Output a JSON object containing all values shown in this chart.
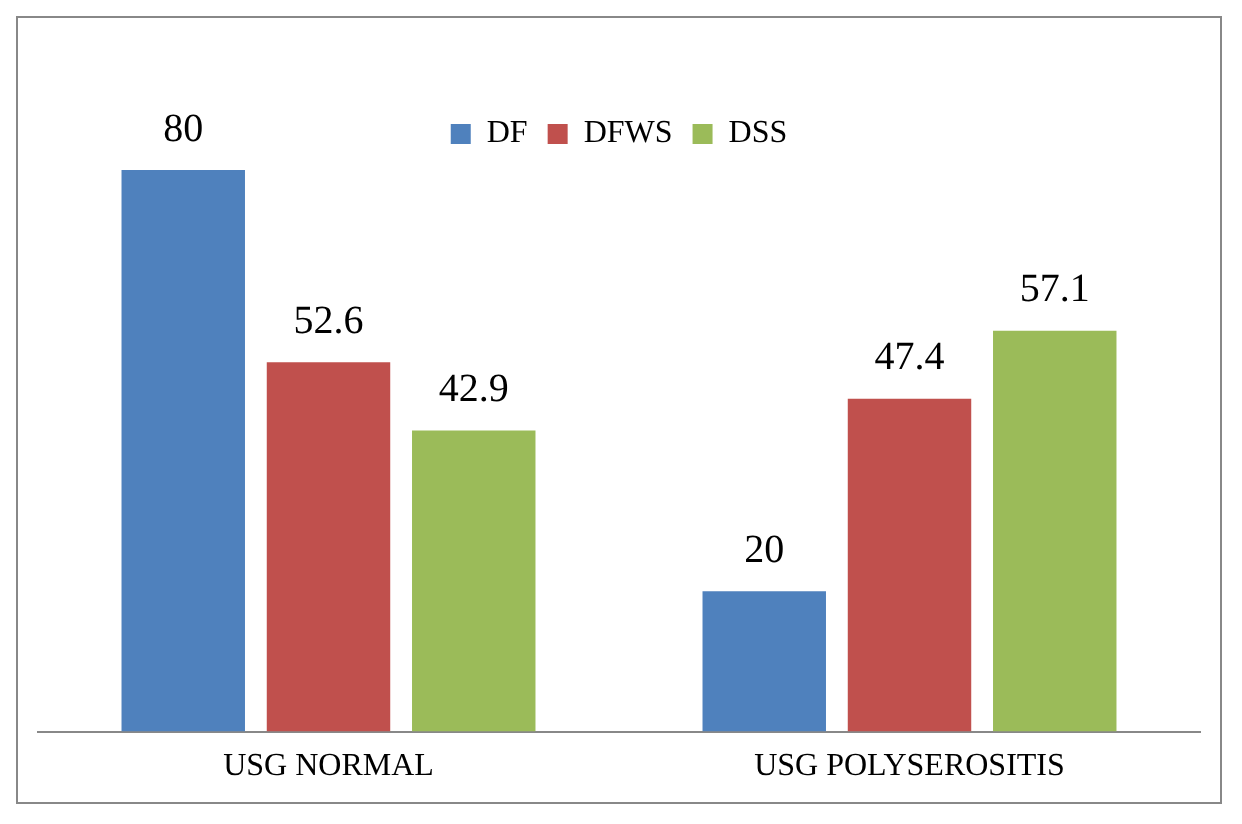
{
  "chart_data": {
    "type": "bar",
    "categories": [
      "USG NORMAL",
      "USG POLYSEROSITIS"
    ],
    "series": [
      {
        "name": "DF",
        "color": "#4f81bd",
        "values": [
          80,
          20
        ]
      },
      {
        "name": "DFWS",
        "color": "#c0504d",
        "values": [
          52.6,
          47.4
        ]
      },
      {
        "name": "DSS",
        "color": "#9bbb59",
        "values": [
          42.9,
          57.1
        ]
      }
    ],
    "data_labels": true,
    "legend": "top",
    "grid": false,
    "tick_labels": "x"
  }
}
